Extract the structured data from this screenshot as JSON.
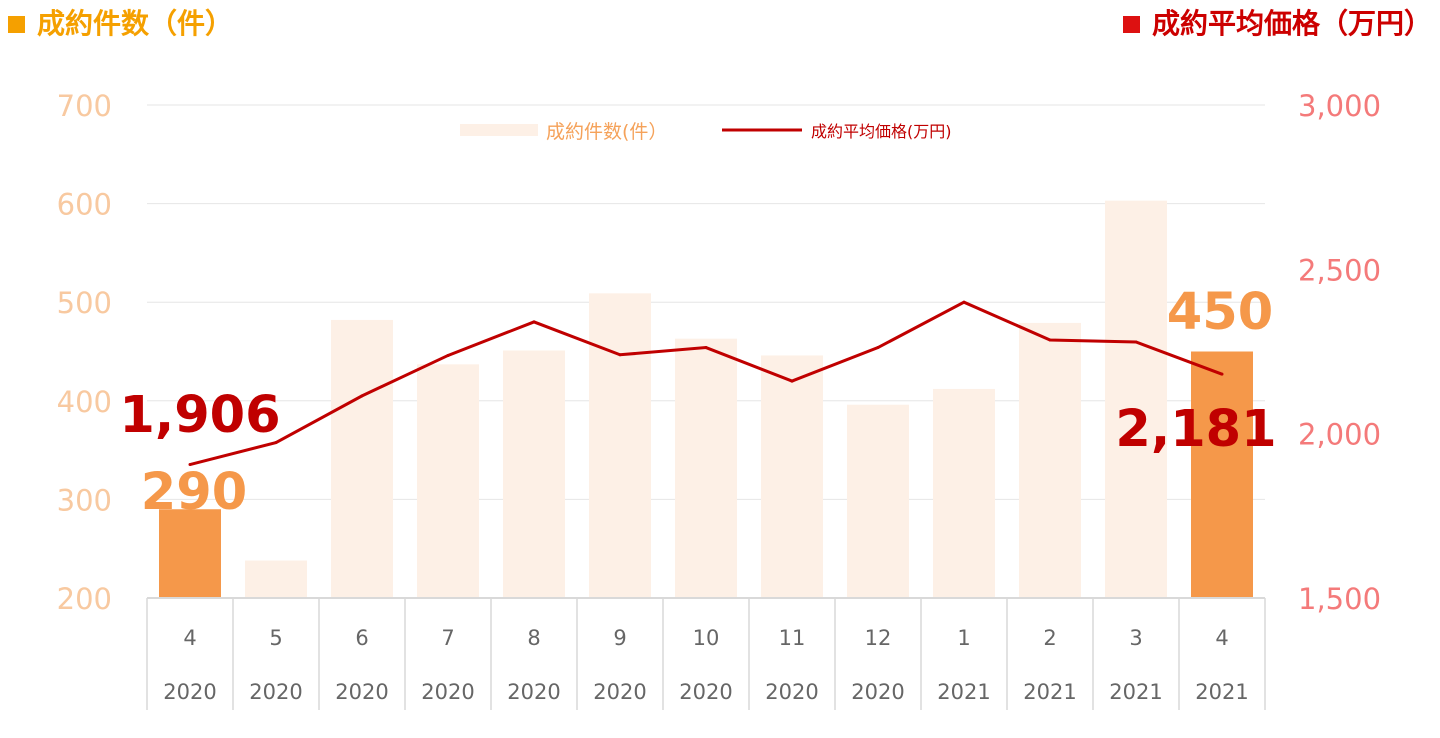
{
  "header": {
    "left_title": "成約件数（件）",
    "right_title": "成約平均価格（万円）"
  },
  "colors": {
    "count_faded": "#fdf0e6",
    "count_highlight": "#f5984a",
    "price_line": "#c00000",
    "left_axis_text": "#f8c9a0",
    "right_axis_text": "#f47a7a",
    "header_left": "#f5a000",
    "header_right": "#dd1111"
  },
  "chart_data": {
    "type": "bar",
    "categories": [
      "4",
      "5",
      "6",
      "7",
      "8",
      "9",
      "10",
      "11",
      "12",
      "1",
      "2",
      "3",
      "4"
    ],
    "years": [
      "2020",
      "2020",
      "2020",
      "2020",
      "2020",
      "2020",
      "2020",
      "2020",
      "2020",
      "2021",
      "2021",
      "2021",
      "2021"
    ],
    "series": [
      {
        "name": "成約件数(件）",
        "axis": "left",
        "type": "bar",
        "values": [
          290,
          238,
          482,
          437,
          451,
          509,
          463,
          446,
          396,
          412,
          479,
          603,
          450
        ],
        "highlighted": [
          0,
          12
        ]
      },
      {
        "name": "成約平均価格(万円)",
        "axis": "right",
        "type": "line",
        "values": [
          1906,
          1973,
          2115,
          2238,
          2340,
          2240,
          2262,
          2160,
          2262,
          2400,
          2285,
          2279,
          2181
        ]
      }
    ],
    "y_left": {
      "range": [
        200,
        700
      ],
      "ticks": [
        "200",
        "300",
        "400",
        "500",
        "600",
        "700"
      ]
    },
    "y_right": {
      "range": [
        1500,
        3000
      ],
      "ticks": [
        "1,500",
        "2,000",
        "2,500",
        "3,000"
      ]
    },
    "annotations": {
      "count_start": "290",
      "count_end": "450",
      "price_start": "1,906",
      "price_end": "2,181"
    },
    "legend_position": "top-center",
    "grid": true
  }
}
